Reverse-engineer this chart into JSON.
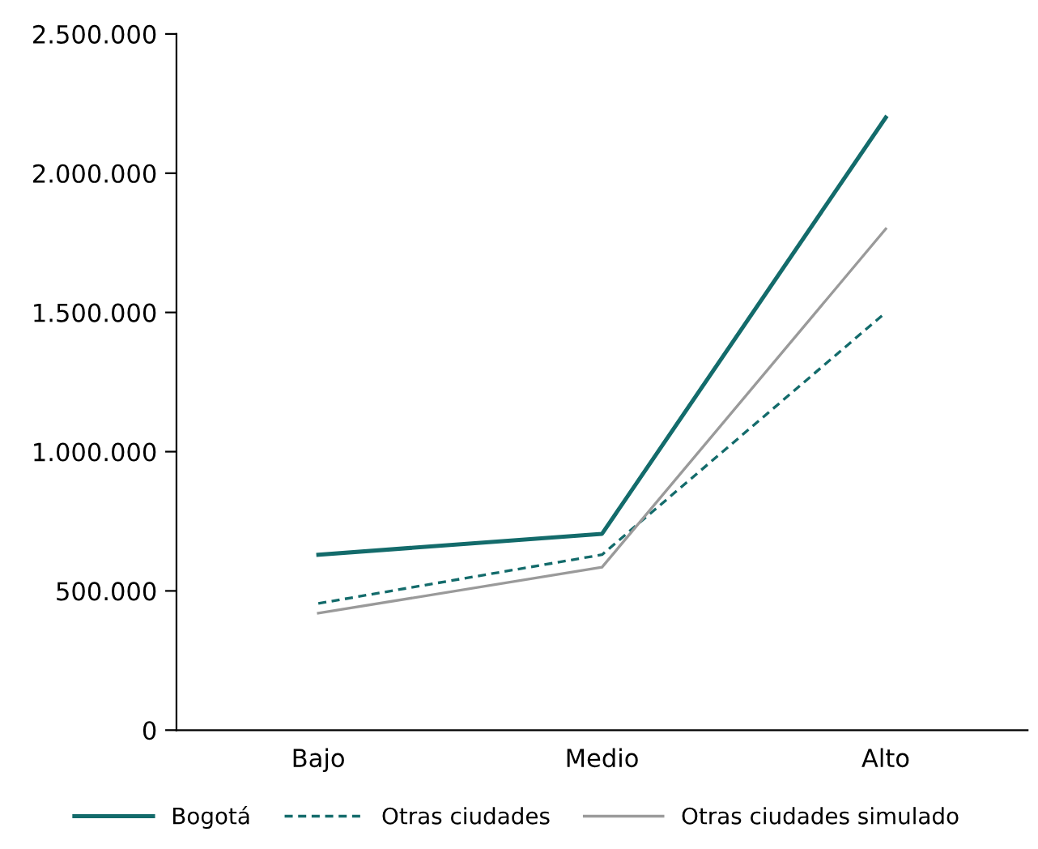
{
  "chart_data": {
    "type": "line",
    "categories": [
      "Bajo",
      "Medio",
      "Alto"
    ],
    "series": [
      {
        "name": "Bogotá",
        "color": "#136b6b",
        "values": [
          630000,
          705000,
          2200000
        ],
        "line_style": "solid"
      },
      {
        "name": "Otras ciudades",
        "color": "#136b6b",
        "values": [
          455000,
          630000,
          1500000
        ],
        "line_style": "dashed"
      },
      {
        "name": "Otras ciudades simulado",
        "color": "#9a9a9a",
        "values": [
          420000,
          585000,
          1800000
        ],
        "line_style": "solid"
      }
    ],
    "ylim": [
      0,
      2500000
    ],
    "yticks": [
      {
        "value": 0,
        "label": "0"
      },
      {
        "value": 500000,
        "label": "500.000"
      },
      {
        "value": 1000000,
        "label": "1.000.000"
      },
      {
        "value": 1500000,
        "label": "1.500.000"
      },
      {
        "value": 2000000,
        "label": "2.000.000"
      },
      {
        "value": 2500000,
        "label": "2.500.000"
      }
    ],
    "grid": false,
    "legend": "bottom",
    "marker": "none"
  }
}
